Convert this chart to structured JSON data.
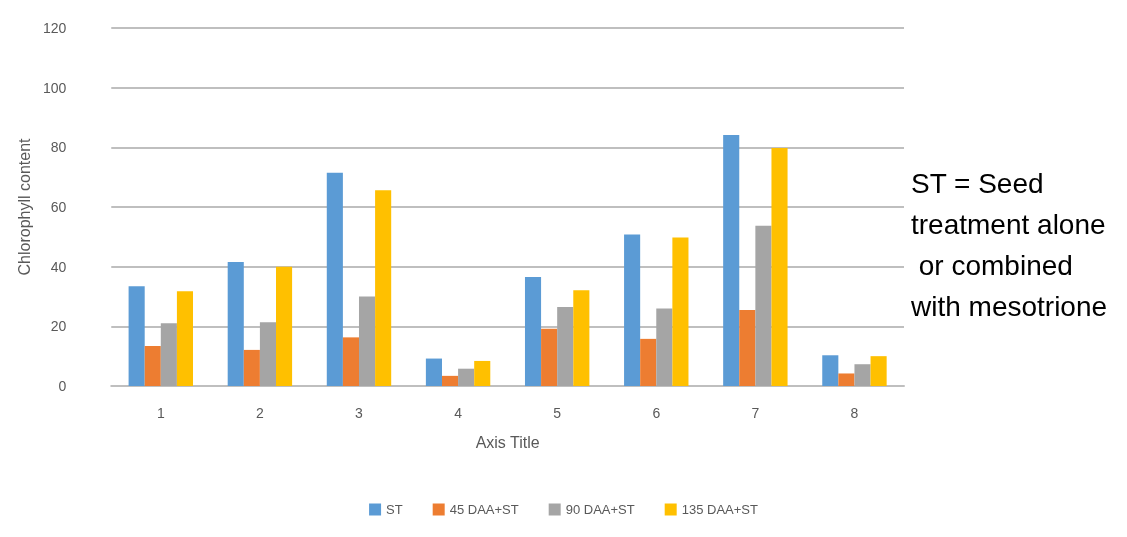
{
  "chart_data": {
    "type": "bar",
    "xlabel": "Axis Title",
    "ylabel": "Chlorophyll content",
    "categories": [
      "1",
      "2",
      "3",
      "4",
      "5",
      "6",
      "7",
      "8"
    ],
    "series": [
      {
        "name": "ST",
        "color": "#5b9bd5",
        "values": [
          33.4,
          41.6,
          71.5,
          9.2,
          36.5,
          50.8,
          84.1,
          10.3
        ]
      },
      {
        "name": "45 DAA+ST",
        "color": "#ed7d31",
        "values": [
          13.4,
          12.1,
          16.3,
          3.4,
          19.2,
          15.8,
          25.5,
          4.2
        ]
      },
      {
        "name": "90 DAA+ST",
        "color": "#a5a5a5",
        "values": [
          21,
          21.4,
          30,
          5.8,
          26.5,
          26,
          53.7,
          7.3
        ]
      },
      {
        "name": "135 DAA+ST",
        "color": "#ffc000",
        "values": [
          31.8,
          40,
          65.6,
          8.4,
          32.1,
          49.8,
          79.8,
          10
        ]
      }
    ],
    "ylim": [
      0,
      120
    ],
    "yticks": [
      0,
      20,
      40,
      60,
      80,
      100,
      120
    ],
    "grid": "y",
    "legend": "bottom",
    "annotations": [
      "ST = Seed treatment alone or combined with mesotrione"
    ]
  }
}
